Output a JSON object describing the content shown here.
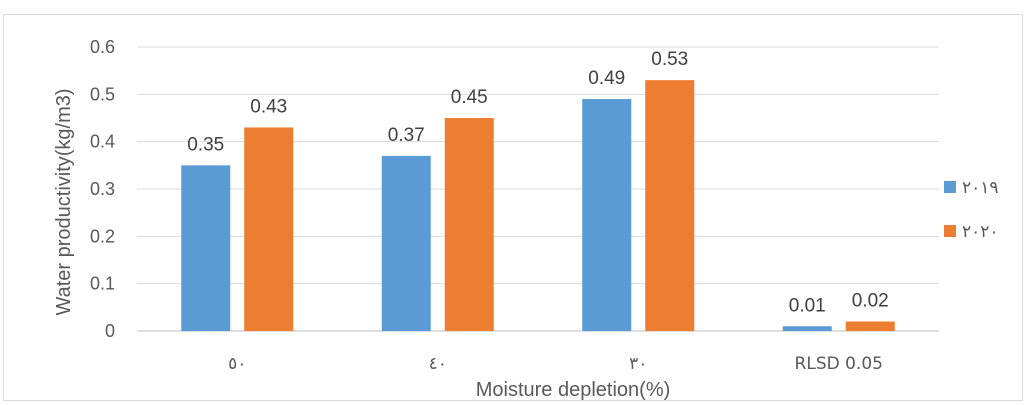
{
  "chart_data": {
    "type": "bar",
    "title": "",
    "xlabel": "Moisture depletion(%)",
    "ylabel": "Water productivity(kg/m3)",
    "ylim": [
      0,
      0.6
    ],
    "yticks": [
      "0",
      "0.1",
      "0.2",
      "0.3",
      "0.4",
      "0.5",
      "0.6"
    ],
    "grid": true,
    "legend_position": "right",
    "categories": [
      "٥٠",
      "٤٠",
      "٣٠",
      "RLSD 0.05"
    ],
    "series": [
      {
        "name": "٢٠١٩",
        "color": "#5B9BD5",
        "values": [
          0.35,
          0.37,
          0.49,
          0.01
        ],
        "labels": [
          "0.35",
          "0.37",
          "0.49",
          "0.01"
        ]
      },
      {
        "name": "٢٠٢٠",
        "color": "#ED7D31",
        "values": [
          0.43,
          0.45,
          0.53,
          0.02
        ],
        "labels": [
          "0.43",
          "0.45",
          "0.53",
          "0.02"
        ]
      }
    ]
  }
}
